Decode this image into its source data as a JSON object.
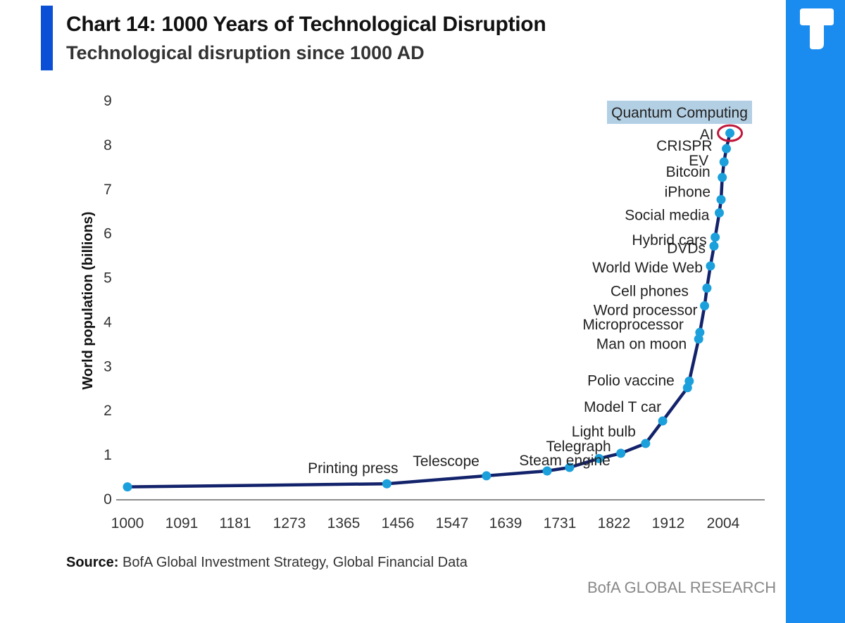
{
  "header": {
    "title": "Chart 14: 1000 Years of Technological Disruption",
    "subtitle": "Technological disruption since 1000 AD"
  },
  "footer": {
    "source_label": "Source:",
    "source_text": " BofA Global Investment Strategy, Global Financial Data",
    "brand": "BofA GLOBAL RESEARCH"
  },
  "colors": {
    "title_bar": "#0a4fd6",
    "line": "#13236b",
    "point": "#1ba0dc",
    "highlight_box": "#b3cfe3",
    "highlight_ring": "#c0173a",
    "panel": "#1a8cf0"
  },
  "chart_data": {
    "type": "line",
    "title": "Chart 14: 1000 Years of Technological Disruption",
    "subtitle": "Technological disruption since 1000 AD",
    "xlabel": "",
    "ylabel": "World population (billions)",
    "xlim": [
      1000,
      2050
    ],
    "ylim": [
      0,
      9
    ],
    "x_ticks": [
      "1000",
      "1091",
      "1181",
      "1273",
      "1365",
      "1456",
      "1547",
      "1639",
      "1731",
      "1822",
      "1912",
      "2004"
    ],
    "y_ticks": [
      "0",
      "1",
      "2",
      "3",
      "4",
      "5",
      "6",
      "7",
      "8",
      "9"
    ],
    "grid": false,
    "series": [
      {
        "name": "World population",
        "points": [
          {
            "x": 1000,
            "y": 0.26,
            "label": ""
          },
          {
            "x": 1440,
            "y": 0.33,
            "label": "Printing press"
          },
          {
            "x": 1609,
            "y": 0.51,
            "label": "Telescope"
          },
          {
            "x": 1712,
            "y": 0.62,
            "label": "Steam engine"
          },
          {
            "x": 1750,
            "y": 0.7,
            "label": ""
          },
          {
            "x": 1800,
            "y": 0.9,
            "label": ""
          },
          {
            "x": 1837,
            "y": 1.02,
            "label": "Telegraph"
          },
          {
            "x": 1879,
            "y": 1.24,
            "label": "Light bulb"
          },
          {
            "x": 1908,
            "y": 1.75,
            "label": "Model T car"
          },
          {
            "x": 1950,
            "y": 2.5,
            "label": ""
          },
          {
            "x": 1953,
            "y": 2.65,
            "label": "Polio vaccine"
          },
          {
            "x": 1969,
            "y": 3.6,
            "label": "Man on moon"
          },
          {
            "x": 1971,
            "y": 3.75,
            "label": "Microprocessor"
          },
          {
            "x": 1979,
            "y": 4.35,
            "label": "Word processor"
          },
          {
            "x": 1983,
            "y": 4.75,
            "label": "Cell phones"
          },
          {
            "x": 1989,
            "y": 5.25,
            "label": "World Wide Web"
          },
          {
            "x": 1995,
            "y": 5.7,
            "label": "DVDs"
          },
          {
            "x": 1997,
            "y": 5.9,
            "label": "Hybrid cars"
          },
          {
            "x": 2004,
            "y": 6.45,
            "label": "Social media"
          },
          {
            "x": 2007,
            "y": 6.75,
            "label": "iPhone"
          },
          {
            "x": 2009,
            "y": 7.25,
            "label": "Bitcoin"
          },
          {
            "x": 2012,
            "y": 7.6,
            "label": "EV"
          },
          {
            "x": 2016,
            "y": 7.9,
            "label": "CRISPR"
          },
          {
            "x": 2022,
            "y": 8.25,
            "label": "AI"
          }
        ]
      }
    ],
    "annotations": [
      {
        "text": "Quantum Computing",
        "highlight": true
      }
    ]
  }
}
